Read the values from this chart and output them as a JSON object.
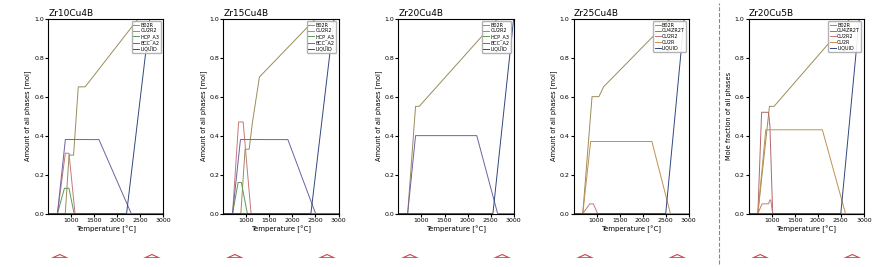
{
  "subplots": [
    {
      "title": "Zr10Cu4B",
      "ylabel": "Amount of all phases [mol]",
      "legend": [
        "B02R",
        "CU2R2",
        "HCP_A3",
        "BCC_A2",
        "LIQUID"
      ]
    },
    {
      "title": "Zr15Cu4B",
      "ylabel": "Amount of all phases [mol]",
      "legend": [
        "B02R",
        "CU2R2",
        "HCP_A3",
        "BCC_A2",
        "LIQUID"
      ]
    },
    {
      "title": "Zr20Cu4B",
      "ylabel": "Amount of all phases [mol]",
      "legend": [
        "B02R",
        "CU2R2",
        "HCP_A3",
        "BCC_A2",
        "LIQUID"
      ]
    },
    {
      "title": "Zr25Cu4B",
      "ylabel": "Amount of all phases [mol]",
      "legend": [
        "B02R",
        "CU4ZR2T",
        "CU2R2",
        "CU2R",
        "LIQUID"
      ]
    },
    {
      "title": "Zr20Cu5B",
      "ylabel": "Mole fraction of all phases",
      "legend": [
        "B02R",
        "CU4ZR2T",
        "CU2R2",
        "CU2R",
        "LIQUID"
      ]
    }
  ],
  "colors": {
    "B02R": "#9a8c5a",
    "CU2R2": "#c47878",
    "HCP_A3": "#5a9a5a",
    "BCC_A2": "#7060a0",
    "LIQUID": "#304880",
    "CU4ZR2T": "#b06868",
    "CU2R": "#c09050"
  },
  "xlabel": "Temperature [°C]",
  "background": "#ffffff"
}
